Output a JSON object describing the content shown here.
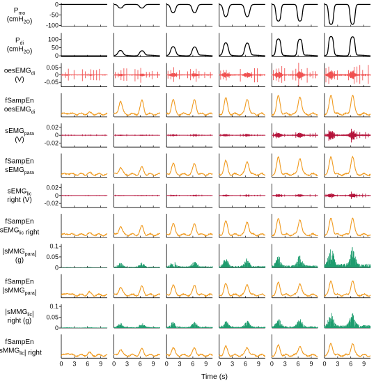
{
  "chart_data": {
    "type": "line",
    "xlabel": "Time (s)",
    "x_ticks": [
      0,
      3,
      6,
      9
    ],
    "xlim": [
      0,
      10.5
    ],
    "columns": 6,
    "colors": {
      "pressure": "#000000",
      "emg_light": "#f05050",
      "emg_dark": "#b5123a",
      "mmg": "#1e9c6e",
      "sampen": "#f09a1e"
    },
    "rows": [
      {
        "label_lines": [
          "P",
          "(cmH",
          "O)"
        ],
        "label_subs": [
          "mo",
          "2",
          ""
        ],
        "label_raw": [
          "P_mo",
          "(cmH_2O)"
        ],
        "ticks": [
          0,
          -50,
          -100
        ],
        "ylim": [
          -105,
          8
        ],
        "color_key": "pressure",
        "kind": "pressure_neg",
        "amplitudes": [
          0,
          18,
          42,
          62,
          80,
          96
        ]
      },
      {
        "label_lines": [
          "P",
          "(cmH",
          "O)"
        ],
        "label_subs": [
          "di",
          "2",
          ""
        ],
        "label_raw": [
          "P_di",
          "(cmH_2O)"
        ],
        "ticks": [
          100,
          50,
          0
        ],
        "ylim": [
          -5,
          140
        ],
        "color_key": "pressure",
        "kind": "pressure_pos",
        "amplitudes": [
          0,
          30,
          55,
          80,
          100,
          115
        ]
      },
      {
        "label_lines": [
          "oesEMG",
          "(V)"
        ],
        "label_subs": [
          "di",
          ""
        ],
        "label_raw": [
          "oesEMG_di",
          "(V)"
        ],
        "ticks": [
          0.05,
          0,
          -0.05
        ],
        "ylim": [
          -0.08,
          0.08
        ],
        "color_key": "emg_light",
        "kind": "emg",
        "amplitudes": [
          0.045,
          0.05,
          0.055,
          0.06,
          0.065,
          0.07
        ]
      },
      {
        "label_lines": [
          "fSampEn",
          "oesEMG"
        ],
        "label_subs": [
          "",
          "di"
        ],
        "label_raw": [
          "fSampEn",
          "oesEMG_di"
        ],
        "ticks": [],
        "ylim": [
          0,
          1
        ],
        "color_key": "sampen",
        "kind": "sampen",
        "amplitudes": [
          0.05,
          0.55,
          0.6,
          0.65,
          0.75,
          0.8
        ]
      },
      {
        "label_lines": [
          "sEMG",
          "(V)"
        ],
        "label_subs": [
          "para",
          ""
        ],
        "label_raw": [
          "sEMG_para",
          "(V)"
        ],
        "ticks": [
          0.02,
          0,
          -0.02
        ],
        "ylim": [
          -0.03,
          0.03
        ],
        "color_key": "emg_dark",
        "kind": "emg",
        "amplitudes": [
          0.006,
          0.007,
          0.009,
          0.011,
          0.018,
          0.026
        ]
      },
      {
        "label_lines": [
          "fSampEn",
          "sEMG"
        ],
        "label_subs": [
          "",
          "para"
        ],
        "label_raw": [
          "fSampEn",
          "sEMG_para"
        ],
        "ticks": [],
        "ylim": [
          0,
          1
        ],
        "color_key": "sampen",
        "kind": "sampen",
        "amplitudes": [
          0.05,
          0.3,
          0.45,
          0.55,
          0.7,
          0.75
        ]
      },
      {
        "label_lines": [
          "sEMG",
          "right (V)"
        ],
        "label_subs": [
          "lic",
          ""
        ],
        "label_raw": [
          "sEMG_lic",
          "right (V)"
        ],
        "ticks": [
          0.02,
          0,
          -0.02
        ],
        "ylim": [
          -0.03,
          0.03
        ],
        "color_key": "emg_dark",
        "kind": "emg",
        "amplitudes": [
          0.004,
          0.005,
          0.006,
          0.007,
          0.009,
          0.014
        ]
      },
      {
        "label_lines": [
          "fSampEn",
          "sEMG",
          " right"
        ],
        "label_subs": [
          "",
          "lic",
          ""
        ],
        "label_raw": [
          "fSampEn",
          "sEMG_lic right"
        ],
        "ticks": [],
        "ylim": [
          0,
          1
        ],
        "color_key": "sampen",
        "kind": "sampen",
        "amplitudes": [
          0.05,
          0.35,
          0.45,
          0.55,
          0.65,
          0.7
        ]
      },
      {
        "label_lines": [
          "|sMMG",
          "|",
          "(g)"
        ],
        "label_subs": [
          "para",
          "",
          ""
        ],
        "label_raw": [
          "|sMMG_para|",
          "(g)"
        ],
        "ticks": [
          0.1,
          0.05,
          0
        ],
        "ylim": [
          0,
          0.11
        ],
        "color_key": "mmg",
        "kind": "mmg",
        "amplitudes": [
          0.01,
          0.025,
          0.035,
          0.045,
          0.06,
          0.1
        ]
      },
      {
        "label_lines": [
          "fSampEn",
          "|sMMG",
          "|"
        ],
        "label_subs": [
          "",
          "para",
          ""
        ],
        "label_raw": [
          "fSampEn",
          "|sMMG_para|"
        ],
        "ticks": [],
        "ylim": [
          0,
          1
        ],
        "color_key": "sampen",
        "kind": "sampen",
        "amplitudes": [
          0.1,
          0.35,
          0.4,
          0.45,
          0.5,
          0.6
        ]
      },
      {
        "label_lines": [
          "|sMMG",
          "|",
          "right (g)"
        ],
        "label_subs": [
          "lic",
          "",
          ""
        ],
        "label_raw": [
          "|sMMG_lic|",
          "right (g)"
        ],
        "ticks": [
          0.1,
          0.05,
          0
        ],
        "ylim": [
          0,
          0.11
        ],
        "color_key": "mmg",
        "kind": "mmg",
        "amplitudes": [
          0.012,
          0.025,
          0.03,
          0.035,
          0.045,
          0.075
        ]
      },
      {
        "label_lines": [
          "fSampEn",
          "|sMMG",
          "| right"
        ],
        "label_subs": [
          "",
          "lic",
          ""
        ],
        "label_raw": [
          "fSampEn",
          "|sMMG_lic| right"
        ],
        "ticks": [],
        "ylim": [
          0,
          1
        ],
        "color_key": "sampen",
        "kind": "sampen",
        "amplitudes": [
          0.1,
          0.25,
          0.3,
          0.35,
          0.4,
          0.5
        ]
      }
    ]
  }
}
